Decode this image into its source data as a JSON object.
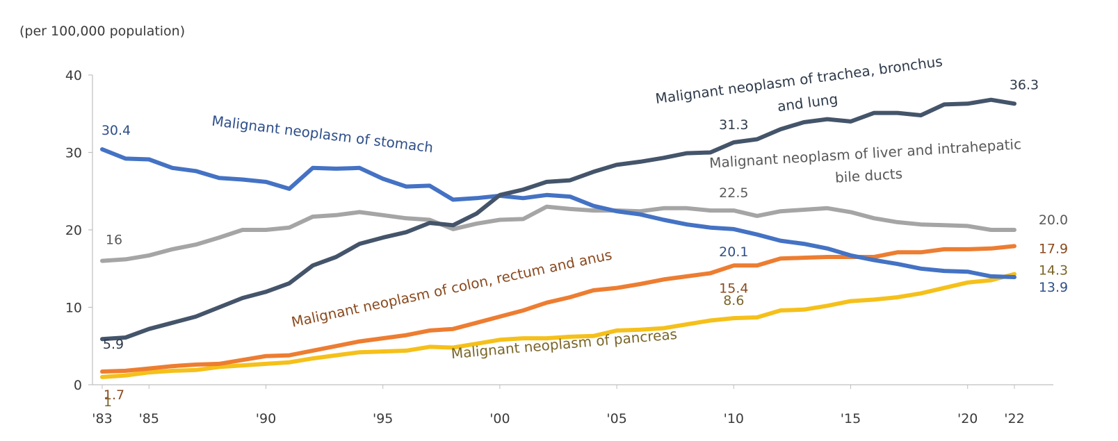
{
  "chart_data": {
    "type": "line",
    "unit_label": "(per 100,000 population)",
    "ylim": [
      0,
      40
    ],
    "yticks": [
      0,
      10,
      20,
      30,
      40
    ],
    "xlim": [
      1983,
      2022
    ],
    "xticks": [
      {
        "x": 1983,
        "label": "'83"
      },
      {
        "x": 1985,
        "label": "'85"
      },
      {
        "x": 1990,
        "label": "'90"
      },
      {
        "x": 1995,
        "label": "'95"
      },
      {
        "x": 2000,
        "label": "'00"
      },
      {
        "x": 2005,
        "label": "'05"
      },
      {
        "x": 2010,
        "label": "'10"
      },
      {
        "x": 2015,
        "label": "'15"
      },
      {
        "x": 2020,
        "label": "'20"
      },
      {
        "x": 2022,
        "label": "'22"
      }
    ],
    "series": [
      {
        "id": "stomach",
        "name": "Malignant neoplasm of stomach",
        "color": "#4472c4",
        "text_color": "#2f4f8a",
        "x": [
          1983,
          1984,
          1985,
          1986,
          1987,
          1988,
          1989,
          1990,
          1991,
          1992,
          1993,
          1994,
          1995,
          1996,
          1997,
          1998,
          1999,
          2000,
          2001,
          2002,
          2003,
          2004,
          2005,
          2006,
          2007,
          2008,
          2009,
          2010,
          2011,
          2012,
          2013,
          2014,
          2015,
          2016,
          2017,
          2018,
          2019,
          2020,
          2021,
          2022
        ],
        "values": [
          30.4,
          29.2,
          29.1,
          28.0,
          27.6,
          26.7,
          26.5,
          26.2,
          25.3,
          28.0,
          27.9,
          28.0,
          26.6,
          25.6,
          25.7,
          23.9,
          24.1,
          24.4,
          24.1,
          24.5,
          24.3,
          23.1,
          22.4,
          22.0,
          21.3,
          20.7,
          20.3,
          20.1,
          19.4,
          18.6,
          18.2,
          17.6,
          16.7,
          16.1,
          15.6,
          15.0,
          14.7,
          14.6,
          14.0,
          13.9
        ],
        "labels": [
          {
            "text": "30.4",
            "x": 1983,
            "y": 30.4
          },
          {
            "text": "20.1",
            "x": 2010,
            "y": 20.1
          },
          {
            "text": "13.9",
            "x": 2022,
            "y": 13.9
          }
        ]
      },
      {
        "id": "lung",
        "name": "Malignant neoplasm of trachea, bronchus and lung",
        "name_lines": [
          "Malignant neoplasm of trachea, bronchus",
          "and lung"
        ],
        "color": "#44546a",
        "text_color": "#2e3a4a",
        "x": [
          1983,
          1984,
          1985,
          1986,
          1987,
          1988,
          1989,
          1990,
          1991,
          1992,
          1993,
          1994,
          1995,
          1996,
          1997,
          1998,
          1999,
          2000,
          2001,
          2002,
          2003,
          2004,
          2005,
          2006,
          2007,
          2008,
          2009,
          2010,
          2011,
          2012,
          2013,
          2014,
          2015,
          2016,
          2017,
          2018,
          2019,
          2020,
          2021,
          2022
        ],
        "values": [
          5.9,
          6.1,
          7.2,
          8.0,
          8.8,
          10.0,
          11.2,
          12.0,
          13.1,
          15.4,
          16.5,
          18.2,
          19.0,
          19.7,
          20.9,
          20.6,
          22.1,
          24.5,
          25.2,
          26.2,
          26.4,
          27.5,
          28.4,
          28.8,
          29.3,
          29.9,
          30.0,
          31.3,
          31.7,
          33.0,
          33.9,
          34.3,
          34.0,
          35.1,
          35.1,
          34.8,
          36.2,
          36.3,
          36.8,
          36.3
        ],
        "labels": [
          {
            "text": "5.9",
            "x": 1983,
            "y": 5.9
          },
          {
            "text": "31.3",
            "x": 2010,
            "y": 31.3
          },
          {
            "text": "36.3",
            "x": 2022,
            "y": 36.3
          }
        ]
      },
      {
        "id": "liver",
        "name": "Malignant neoplasm of liver and intrahepatic bile ducts",
        "name_lines": [
          "Malignant neoplasm of liver and intrahepatic",
          "bile ducts"
        ],
        "color": "#a5a5a5",
        "text_color": "#595959",
        "x": [
          1983,
          1984,
          1985,
          1986,
          1987,
          1988,
          1989,
          1990,
          1991,
          1992,
          1993,
          1994,
          1995,
          1996,
          1997,
          1998,
          1999,
          2000,
          2001,
          2002,
          2003,
          2004,
          2005,
          2006,
          2007,
          2008,
          2009,
          2010,
          2011,
          2012,
          2013,
          2014,
          2015,
          2016,
          2017,
          2018,
          2019,
          2020,
          2021,
          2022
        ],
        "values": [
          16.0,
          16.2,
          16.7,
          17.5,
          18.1,
          19.0,
          20.0,
          20.0,
          20.3,
          21.7,
          21.9,
          22.3,
          21.9,
          21.5,
          21.3,
          20.1,
          20.8,
          21.3,
          21.4,
          23.0,
          22.7,
          22.5,
          22.5,
          22.4,
          22.8,
          22.8,
          22.5,
          22.5,
          21.8,
          22.4,
          22.6,
          22.8,
          22.3,
          21.5,
          21.0,
          20.7,
          20.6,
          20.5,
          20.0,
          20.0
        ],
        "labels": [
          {
            "text": "16",
            "x": 1983,
            "y": 16.0
          },
          {
            "text": "22.5",
            "x": 2010,
            "y": 22.5
          },
          {
            "text": "20.0",
            "x": 2022,
            "y": 20.0
          }
        ]
      },
      {
        "id": "colon",
        "name": "Malignant neoplasm of colon, rectum and anus",
        "color": "#ed7d31",
        "text_color": "#8a4a1e",
        "x": [
          1983,
          1984,
          1985,
          1986,
          1987,
          1988,
          1989,
          1990,
          1991,
          1992,
          1993,
          1994,
          1995,
          1996,
          1997,
          1998,
          1999,
          2000,
          2001,
          2002,
          2003,
          2004,
          2005,
          2006,
          2007,
          2008,
          2009,
          2010,
          2011,
          2012,
          2013,
          2014,
          2015,
          2016,
          2017,
          2018,
          2019,
          2020,
          2021,
          2022
        ],
        "values": [
          1.7,
          1.8,
          2.1,
          2.4,
          2.6,
          2.7,
          3.2,
          3.7,
          3.8,
          4.4,
          5.0,
          5.6,
          6.0,
          6.4,
          7.0,
          7.2,
          8.0,
          8.8,
          9.6,
          10.6,
          11.3,
          12.2,
          12.5,
          13.0,
          13.6,
          14.0,
          14.4,
          15.4,
          15.4,
          16.3,
          16.4,
          16.5,
          16.5,
          16.5,
          17.1,
          17.1,
          17.5,
          17.5,
          17.6,
          17.9
        ],
        "labels": [
          {
            "text": "1.7",
            "x": 1983,
            "y": 1.7
          },
          {
            "text": "15.4",
            "x": 2010,
            "y": 15.4
          },
          {
            "text": "17.9",
            "x": 2022,
            "y": 17.9
          }
        ]
      },
      {
        "id": "pancreas",
        "name": "Malignant neoplasm of pancreas",
        "color": "#f5c01a",
        "text_color": "#7a6528",
        "x": [
          1983,
          1984,
          1985,
          1986,
          1987,
          1988,
          1989,
          1990,
          1991,
          1992,
          1993,
          1994,
          1995,
          1996,
          1997,
          1998,
          1999,
          2000,
          2001,
          2002,
          2003,
          2004,
          2005,
          2006,
          2007,
          2008,
          2009,
          2010,
          2011,
          2012,
          2013,
          2014,
          2015,
          2016,
          2017,
          2018,
          2019,
          2020,
          2021,
          2022
        ],
        "values": [
          1.0,
          1.2,
          1.6,
          1.8,
          1.9,
          2.3,
          2.5,
          2.7,
          2.9,
          3.4,
          3.8,
          4.2,
          4.3,
          4.4,
          4.9,
          4.8,
          5.3,
          5.8,
          6.0,
          6.0,
          6.2,
          6.3,
          7.0,
          7.1,
          7.3,
          7.8,
          8.3,
          8.6,
          8.7,
          9.6,
          9.7,
          10.2,
          10.8,
          11.0,
          11.3,
          11.8,
          12.5,
          13.2,
          13.5,
          14.3
        ],
        "labels": [
          {
            "text": "1",
            "x": 1983,
            "y": 1.0
          },
          {
            "text": "8.6",
            "x": 2010,
            "y": 8.6
          },
          {
            "text": "14.3",
            "x": 2022,
            "y": 14.3
          }
        ]
      }
    ]
  }
}
